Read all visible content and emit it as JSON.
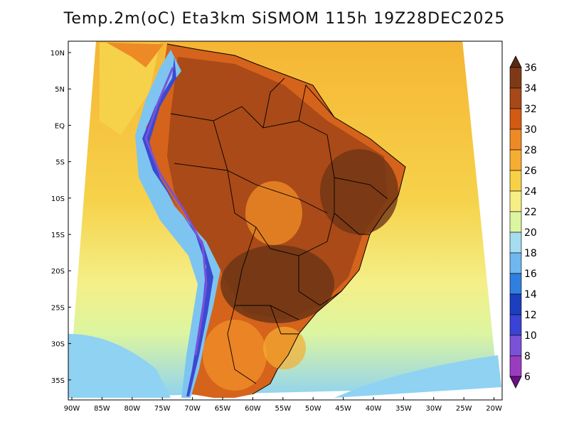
{
  "title": "Temp.2m(oC) Eta3km SiSMOM 115h 19Z28DEC2025",
  "lat_labels": [
    "10N",
    "5N",
    "EQ",
    "5S",
    "10S",
    "15S",
    "20S",
    "25S",
    "30S",
    "35S"
  ],
  "lon_labels": [
    "90W",
    "85W",
    "80W",
    "75W",
    "70W",
    "65W",
    "60W",
    "55W",
    "50W",
    "45W",
    "40W",
    "35W",
    "30W",
    "25W",
    "20W"
  ],
  "colorbar": {
    "labels": [
      "36",
      "34",
      "32",
      "30",
      "28",
      "26",
      "24",
      "22",
      "20",
      "18",
      "16",
      "14",
      "12",
      "10",
      "8",
      "6"
    ],
    "colors": [
      "#5a2a12",
      "#7e3a17",
      "#a64818",
      "#d35a12",
      "#ee8a26",
      "#f5ae32",
      "#f7d046",
      "#f7ef84",
      "#dcf5a0",
      "#a6dcf0",
      "#6fb7ef",
      "#2f7fe0",
      "#1c3fc0",
      "#3a43d6",
      "#7a52d8",
      "#9a3cc0",
      "#6a0f86"
    ]
  },
  "map_colors": {
    "ocean_warm": "#f5b534",
    "ocean_mid": "#f6d24a",
    "ocean_cool": "#f4ef88",
    "ocean_cold": "#bff0c0",
    "ocean_cold2": "#8fd2f2",
    "land_hot": "#d5631b",
    "land_hotter": "#a94a18",
    "land_hottest": "#6f3515",
    "andes_cold": "#3b49d0",
    "andes_mid": "#7ec4f0"
  }
}
